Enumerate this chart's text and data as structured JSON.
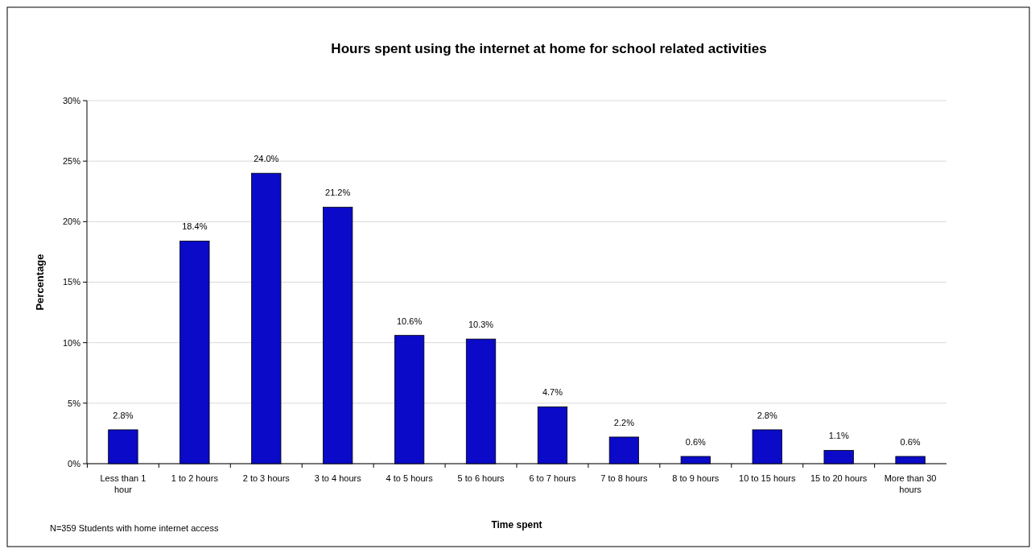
{
  "chart_data": {
    "type": "bar",
    "title": "Hours spent using the internet at home for school related activities",
    "xlabel": "Time spent",
    "ylabel": "Percentage",
    "annotations": [
      "N=359 Students with home internet access"
    ],
    "categories": [
      "Less than 1 hour",
      "1 to 2 hours",
      "2 to 3 hours",
      "3 to 4 hours",
      "4 to 5 hours",
      "5 to 6 hours",
      "6 to 7 hours",
      "7 to 8 hours",
      "8 to 9 hours",
      "10 to 15 hours",
      "15 to 20 hours",
      "More than 30 hours"
    ],
    "values": [
      2.8,
      18.4,
      24.0,
      21.2,
      10.6,
      10.3,
      4.7,
      2.2,
      0.6,
      2.8,
      1.1,
      0.6
    ],
    "value_labels": [
      "2.8%",
      "18.4%",
      "24.0%",
      "21.2%",
      "10.6%",
      "10.3%",
      "4.7%",
      "2.2%",
      "0.6%",
      "2.8%",
      "1.1%",
      "0.6%"
    ],
    "color": "#0a0ac8",
    "ylim": [
      0,
      30
    ],
    "yticks": [
      {
        "value": 0,
        "label": "0%"
      },
      {
        "value": 5,
        "label": "5%"
      },
      {
        "value": 10,
        "label": "10%"
      },
      {
        "value": 15,
        "label": "15%"
      },
      {
        "value": 20,
        "label": "20%"
      },
      {
        "value": 25,
        "label": "25%"
      },
      {
        "value": 30,
        "label": "30%"
      }
    ],
    "grid": "y"
  }
}
